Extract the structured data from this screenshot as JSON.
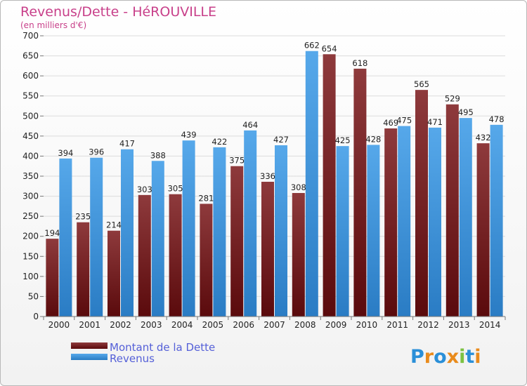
{
  "chart_data": {
    "type": "bar",
    "title": "Revenus/Dette - HéROUVILLE",
    "subtitle": "(en milliers d'€)",
    "categories": [
      "2000",
      "2001",
      "2002",
      "2003",
      "2004",
      "2005",
      "2006",
      "2007",
      "2008",
      "2009",
      "2010",
      "2011",
      "2012",
      "2013",
      "2014"
    ],
    "series": [
      {
        "name": "Montant de la Dette",
        "color": "#7a2124",
        "values": [
          194,
          235,
          214,
          303,
          305,
          281,
          375,
          336,
          308,
          654,
          618,
          469,
          565,
          529,
          432
        ]
      },
      {
        "name": "Revenus",
        "color": "#3f97dd",
        "values": [
          394,
          396,
          417,
          388,
          439,
          422,
          464,
          427,
          662,
          425,
          428,
          475,
          471,
          495,
          478
        ]
      }
    ],
    "ylim": [
      0,
      700
    ],
    "yticks": [
      0,
      50,
      100,
      150,
      200,
      250,
      300,
      350,
      400,
      450,
      500,
      550,
      600,
      650,
      700
    ],
    "grid": true,
    "xlabel": "",
    "ylabel": "",
    "legend": [
      "Montant de la Dette",
      "Revenus"
    ]
  },
  "logo": {
    "text": "Proxiti",
    "letters": [
      "P",
      "r",
      "o",
      "x",
      "i",
      "t",
      "i"
    ],
    "colors": [
      "#2a8fd8",
      "#e98b1c",
      "#2a8fd8",
      "#e98b1c",
      "#7cc242",
      "#2a8fd8",
      "#e98b1c"
    ]
  }
}
